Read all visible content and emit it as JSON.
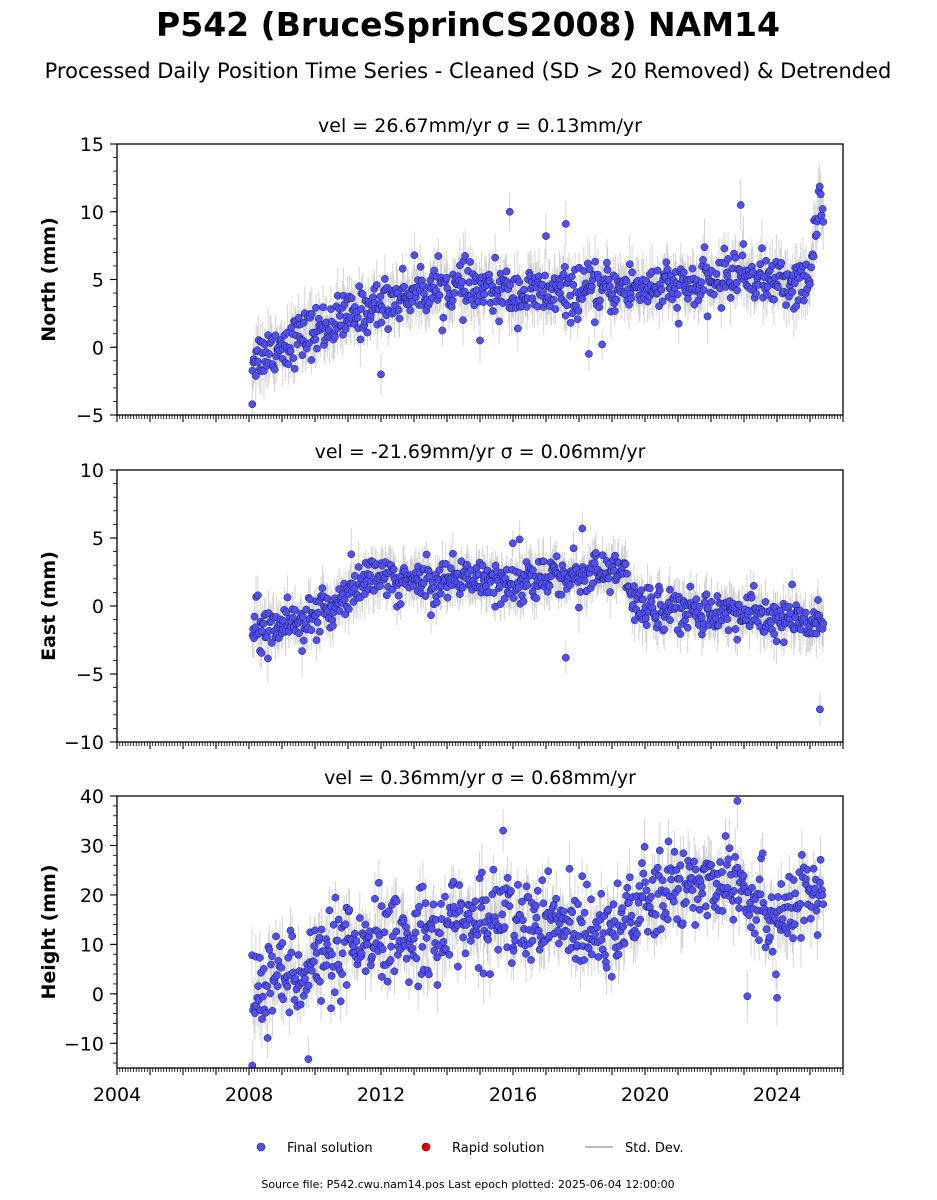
{
  "figure": {
    "title": "P542 (BruceSprinCS2008) NAM14",
    "subtitle": "Processed Daily Position Time Series - Cleaned (SD > 20 Removed) & Detrended",
    "footer": "Source file: P542.cwu.nam14.pos  Last epoch plotted: 2025-06-04 12:00:00",
    "colors": {
      "final": "#4f4ff5",
      "rapid": "#e00000",
      "stddev": "#bdbdbd",
      "point_edge": "#1a1a4a"
    }
  },
  "legend": {
    "placement": "bottom-center",
    "items": [
      "Final solution",
      "Rapid solution",
      "Std. Dev."
    ]
  },
  "chart_data": [
    {
      "type": "scatter",
      "title": "vel = 26.67mm/yr   σ = 0.13mm/yr",
      "ylabel": "North (mm)",
      "xlabel": "",
      "xlim": [
        2004,
        2026
      ],
      "ylim": [
        -5,
        15
      ],
      "yticks": [
        -5,
        0,
        5,
        10,
        15
      ],
      "xticks": [],
      "trend": [
        [
          2008.1,
          -0.8
        ],
        [
          2009,
          0.2
        ],
        [
          2010,
          1.2
        ],
        [
          2011,
          2.2
        ],
        [
          2012,
          3.2
        ],
        [
          2013,
          4.2
        ],
        [
          2014,
          4.4
        ],
        [
          2015,
          4.2
        ],
        [
          2016,
          4.0
        ],
        [
          2017,
          3.9
        ],
        [
          2018,
          4.0
        ],
        [
          2019,
          4.3
        ],
        [
          2020,
          4.5
        ],
        [
          2021,
          4.3
        ],
        [
          2022,
          4.7
        ],
        [
          2022.8,
          5.6
        ],
        [
          2023.3,
          5.2
        ],
        [
          2024,
          4.8
        ],
        [
          2025,
          4.6
        ],
        [
          2025.2,
          10.5
        ],
        [
          2025.4,
          10.5
        ]
      ],
      "noise": 0.9,
      "err": 1.4,
      "outliers": [
        [
          2008.1,
          -4.2
        ],
        [
          2012.0,
          -2.0
        ],
        [
          2015.0,
          0.5
        ],
        [
          2017.0,
          8.2
        ],
        [
          2017.6,
          9.1
        ],
        [
          2018.3,
          -0.5
        ],
        [
          2018.7,
          0.2
        ],
        [
          2022.9,
          10.5
        ],
        [
          2015.9,
          10.0
        ]
      ]
    },
    {
      "type": "scatter",
      "title": "vel = -21.69mm/yr   σ = 0.06mm/yr",
      "ylabel": "East (mm)",
      "xlabel": "",
      "xlim": [
        2004,
        2026
      ],
      "ylim": [
        -10,
        10
      ],
      "yticks": [
        -10,
        -5,
        0,
        5,
        10
      ],
      "xticks": [],
      "trend": [
        [
          2008.1,
          -1.0
        ],
        [
          2009,
          -1.3
        ],
        [
          2010,
          -1.0
        ],
        [
          2010.7,
          0.3
        ],
        [
          2011.3,
          1.8
        ],
        [
          2012,
          2.0
        ],
        [
          2013,
          1.8
        ],
        [
          2014,
          2.0
        ],
        [
          2015,
          2.1
        ],
        [
          2016,
          1.8
        ],
        [
          2017,
          2.0
        ],
        [
          2018,
          2.4
        ],
        [
          2019,
          2.4
        ],
        [
          2019.4,
          2.8
        ],
        [
          2019.6,
          -0.2
        ],
        [
          2020,
          0.2
        ],
        [
          2021,
          -0.3
        ],
        [
          2022,
          -0.4
        ],
        [
          2023,
          -0.6
        ],
        [
          2024,
          -1.0
        ],
        [
          2025,
          -1.2
        ],
        [
          2025.4,
          -1.8
        ]
      ],
      "noise": 0.8,
      "err": 1.3,
      "outliers": [
        [
          2017.6,
          -3.8
        ],
        [
          2025.3,
          -7.6
        ],
        [
          2018.1,
          5.7
        ],
        [
          2011.1,
          3.8
        ],
        [
          2016.2,
          4.9
        ]
      ]
    },
    {
      "type": "scatter",
      "title": "vel = 0.36mm/yr   σ = 0.68mm/yr",
      "ylabel": "Height (mm)",
      "xlabel": "",
      "xlim": [
        2004,
        2026
      ],
      "ylim": [
        -15,
        40
      ],
      "yticks": [
        -10,
        0,
        10,
        20,
        30,
        40
      ],
      "xticks": [
        2004,
        2008,
        2012,
        2016,
        2020,
        2024
      ],
      "trend": [
        [
          2008.1,
          2
        ],
        [
          2009,
          4
        ],
        [
          2010,
          6
        ],
        [
          2011,
          8
        ],
        [
          2012,
          10
        ],
        [
          2013,
          12
        ],
        [
          2014,
          14
        ],
        [
          2015,
          15
        ],
        [
          2016,
          15
        ],
        [
          2017,
          14
        ],
        [
          2018,
          14
        ],
        [
          2019,
          14
        ],
        [
          2020,
          18
        ],
        [
          2021,
          21
        ],
        [
          2022,
          23
        ],
        [
          2022.8,
          25
        ],
        [
          2023.3,
          18
        ],
        [
          2024,
          16
        ],
        [
          2025,
          19
        ],
        [
          2025.4,
          20
        ]
      ],
      "noise": 4.5,
      "err": 4.0,
      "outliers": [
        [
          2008.1,
          -14.5
        ],
        [
          2009.8,
          -13.2
        ],
        [
          2022.8,
          39
        ],
        [
          2023.1,
          -0.5
        ],
        [
          2024.0,
          -0.8
        ],
        [
          2015.7,
          33
        ]
      ]
    }
  ]
}
